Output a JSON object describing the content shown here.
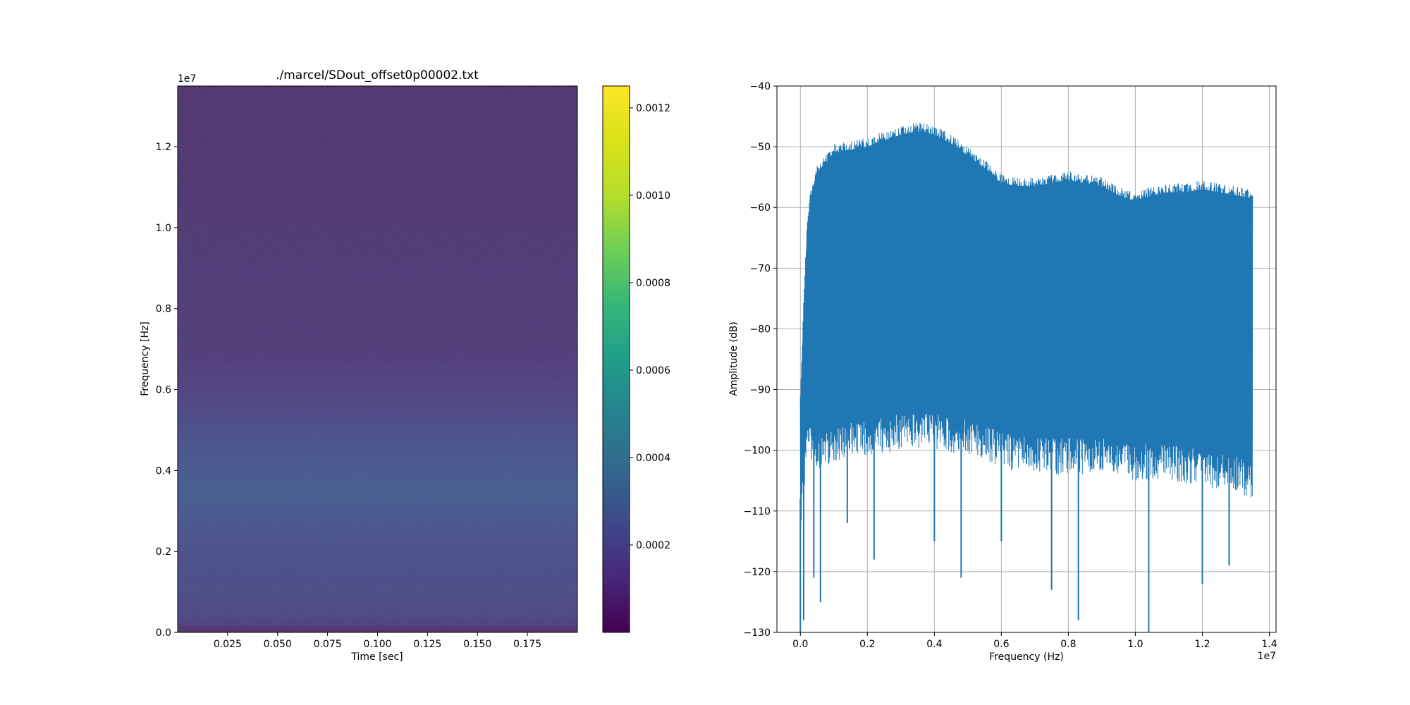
{
  "chart_data": [
    {
      "type": "heatmap",
      "title": "./marcel/SDout_offset0p00002.txt",
      "xlabel": "Time [sec]",
      "ylabel": "Frequency [Hz]",
      "y_offset_label": "1e7",
      "xlim": [
        0.0,
        0.2
      ],
      "ylim": [
        0,
        1.35
      ],
      "xticks": [
        0.025,
        0.05,
        0.075,
        0.1,
        0.125,
        0.15,
        0.175
      ],
      "xtick_labels": [
        "0.025",
        "0.050",
        "0.075",
        "0.100",
        "0.125",
        "0.150",
        "0.175"
      ],
      "yticks": [
        0.0,
        0.2,
        0.4,
        0.6,
        0.8,
        1.0,
        1.2
      ],
      "ytick_labels": [
        "0.0",
        "0.2",
        "0.4",
        "0.6",
        "0.8",
        "1.0",
        "1.2"
      ],
      "colormap": "viridis",
      "colorbar": {
        "range": [
          0.0,
          0.00125
        ],
        "ticks": [
          0.0002,
          0.0004,
          0.0006,
          0.0008,
          0.001,
          0.0012
        ],
        "tick_labels": [
          "0.0002",
          "0.0004",
          "0.0006",
          "0.0008",
          "0.0010",
          "0.0012"
        ]
      },
      "mean_intensity_by_frequency": {
        "frequency": [
          0.0,
          0.01,
          0.02,
          0.05,
          0.1,
          0.2,
          0.3,
          0.35,
          0.4,
          0.5,
          0.6,
          0.7,
          0.8,
          0.9,
          1.0,
          1.2,
          1.35
        ],
        "intensity": [
          3e-05,
          6e-05,
          0.00013,
          0.00018,
          0.0002,
          0.00022,
          0.00027,
          0.00029,
          0.00027,
          0.00022,
          0.00014,
          0.0001,
          0.0001,
          9.5e-05,
          8e-05,
          7e-05,
          7e-05
        ]
      }
    },
    {
      "type": "line",
      "xlabel": "Frequency (Hz)",
      "ylabel": "Amplitude (dB)",
      "x_offset_label": "1e7",
      "xlim": [
        -0.07,
        1.42
      ],
      "ylim": [
        -130,
        -40
      ],
      "grid": true,
      "color": "#1f77b4",
      "xticks": [
        0.0,
        0.2,
        0.4,
        0.6,
        0.8,
        1.0,
        1.2,
        1.4
      ],
      "xtick_labels": [
        "0.0",
        "0.2",
        "0.4",
        "0.6",
        "0.8",
        "1.0",
        "1.2",
        "1.4"
      ],
      "yticks": [
        -130,
        -120,
        -110,
        -100,
        -90,
        -80,
        -70,
        -60,
        -50,
        -40
      ],
      "ytick_labels": [
        "−130",
        "−120",
        "−110",
        "−100",
        "−90",
        "−80",
        "−70",
        "−60",
        "−50",
        "−40"
      ],
      "upper_envelope": {
        "x": [
          0.0,
          0.01,
          0.02,
          0.03,
          0.05,
          0.08,
          0.1,
          0.15,
          0.2,
          0.25,
          0.3,
          0.35,
          0.4,
          0.45,
          0.5,
          0.55,
          0.6,
          0.65,
          0.7,
          0.75,
          0.8,
          0.85,
          0.9,
          0.95,
          1.0,
          1.05,
          1.1,
          1.15,
          1.2,
          1.25,
          1.3,
          1.35
        ],
        "y": [
          -90,
          -75,
          -62,
          -57,
          -53,
          -51,
          -49.5,
          -49,
          -48.5,
          -47.5,
          -46.5,
          -46,
          -46.5,
          -48,
          -50,
          -52,
          -54.5,
          -55,
          -55,
          -54.5,
          -54,
          -54.5,
          -55,
          -56.5,
          -57.5,
          -56.5,
          -56,
          -56,
          -55.5,
          -56,
          -56.5,
          -57
        ]
      },
      "lower_envelope": {
        "x": [
          0.0,
          0.02,
          0.05,
          0.1,
          0.2,
          0.3,
          0.4,
          0.5,
          0.6,
          0.7,
          0.8,
          0.9,
          1.0,
          1.1,
          1.2,
          1.3,
          1.35
        ],
        "y": [
          -108,
          -96,
          -97,
          -96,
          -95,
          -94,
          -94,
          -95,
          -97,
          -98,
          -98,
          -98,
          -99,
          -99,
          -100,
          -101,
          -102
        ]
      },
      "dips": {
        "x": [
          0.0,
          0.01,
          0.04,
          0.06,
          0.14,
          0.22,
          0.4,
          0.48,
          0.6,
          0.75,
          0.83,
          1.04,
          1.2,
          1.28
        ],
        "y": [
          -130,
          -128,
          -121,
          -125,
          -112,
          -118,
          -115,
          -121,
          -115,
          -123,
          -128,
          -130,
          -122,
          -119
        ]
      }
    }
  ]
}
